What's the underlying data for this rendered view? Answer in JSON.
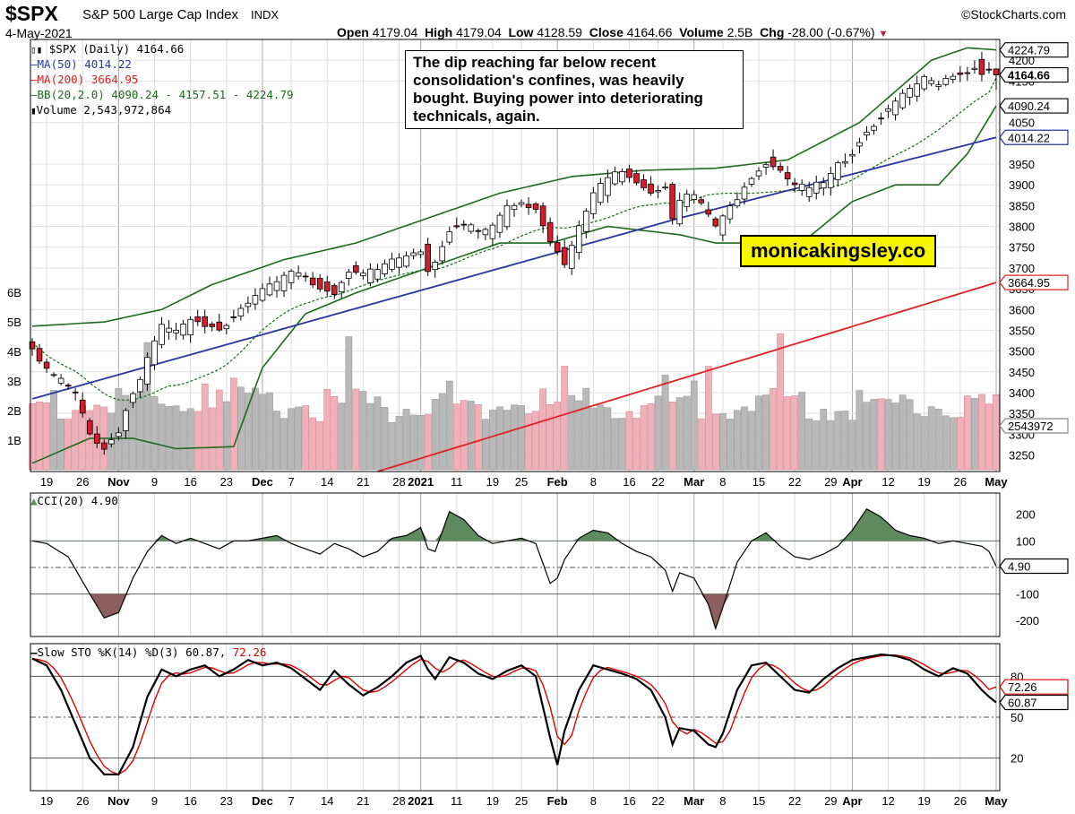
{
  "header": {
    "ticker": "$SPX",
    "index_name": "S&P 500 Large Cap Index",
    "exchange": "INDX",
    "date": "4-May-2021",
    "credit": "©StockCharts.com",
    "open_label": "Open",
    "open": "4179.04",
    "high_label": "High",
    "high": "4179.04",
    "low_label": "Low",
    "low": "4128.59",
    "close_label": "Close",
    "close": "4164.66",
    "volume_label": "Volume",
    "volume": "2.5B",
    "chg_label": "Chg",
    "chg": "-28.00 (-0.67%)"
  },
  "legend": {
    "price": "$SPX (Daily) 4164.66",
    "ma50": "MA(50) 4014.22",
    "ma200": "MA(200) 3664.95",
    "bb": "BB(20,2.0) 4090.24 - 4157.51 - 4224.79",
    "volume": "Volume 2,543,972,864",
    "cci": "CCI(20) 4.90",
    "sto_main": "Slow STO %K(14) %D(3) 60.87,",
    "sto_d": "72.26"
  },
  "annotation": "The dip reaching far below recent consolidation's confines, was heavily bought. Buying power into deteriorating technicals, again.",
  "brand": "monicakingsley.co",
  "colors": {
    "up": "#ffffff",
    "down": "#d0202e",
    "ma50": "#2a35a0",
    "ma200": "#e02020",
    "bb": "#1d6a1d",
    "vol_up": "#b8b8b8",
    "vol_down": "#f0b0b8",
    "cci_pos": "#5e8c5e",
    "cci_neg": "#8c5e5e",
    "k": "#000000",
    "d": "#e00000"
  },
  "chart_data": [
    {
      "type": "candlestick",
      "title": "$SPX (Daily)",
      "ylim": [
        3210,
        4250
      ],
      "y_ticks": [
        3250,
        3300,
        3350,
        3400,
        3450,
        3500,
        3550,
        3600,
        3650,
        3700,
        3750,
        3800,
        3850,
        3900,
        3950,
        4050,
        4150,
        4200
      ],
      "x_ticks": [
        {
          "label": "19",
          "i": 2
        },
        {
          "label": "26",
          "i": 7
        },
        {
          "label": "Nov",
          "i": 12
        },
        {
          "label": "9",
          "i": 17
        },
        {
          "label": "16",
          "i": 22
        },
        {
          "label": "23",
          "i": 27
        },
        {
          "label": "Dec",
          "i": 32
        },
        {
          "label": "7",
          "i": 36
        },
        {
          "label": "14",
          "i": 41
        },
        {
          "label": "21",
          "i": 46
        },
        {
          "label": "28",
          "i": 51
        },
        {
          "label": "2021",
          "i": 54
        },
        {
          "label": "11",
          "i": 59
        },
        {
          "label": "19",
          "i": 64
        },
        {
          "label": "25",
          "i": 68
        },
        {
          "label": "Feb",
          "i": 73
        },
        {
          "label": "8",
          "i": 78
        },
        {
          "label": "16",
          "i": 83
        },
        {
          "label": "22",
          "i": 87
        },
        {
          "label": "Mar",
          "i": 92
        },
        {
          "label": "8",
          "i": 96
        },
        {
          "label": "15",
          "i": 101
        },
        {
          "label": "22",
          "i": 106
        },
        {
          "label": "29",
          "i": 111
        },
        {
          "label": "Apr",
          "i": 114
        },
        {
          "label": "12",
          "i": 119
        },
        {
          "label": "19",
          "i": 124
        },
        {
          "label": "26",
          "i": 129
        },
        {
          "label": "May",
          "i": 134
        }
      ],
      "price_labels": [
        {
          "value": "4224.79",
          "price": 4224.79,
          "style": "bb"
        },
        {
          "value": "4164.66",
          "price": 4164.66,
          "style": "price"
        },
        {
          "value": "4090.24",
          "price": 4090.24,
          "style": "bb"
        },
        {
          "value": "4014.22",
          "price": 4014.22,
          "style": "ma50"
        },
        {
          "value": "3664.95",
          "price": 3664.95,
          "style": "ma200"
        },
        {
          "value": "2543972",
          "price": 3320,
          "style": "vol"
        }
      ],
      "closes_key": [
        [
          0,
          3520
        ],
        [
          2,
          3460
        ],
        [
          4,
          3430
        ],
        [
          6,
          3400
        ],
        [
          8,
          3300
        ],
        [
          10,
          3275
        ],
        [
          12,
          3310
        ],
        [
          13,
          3370
        ],
        [
          15,
          3440
        ],
        [
          16,
          3490
        ],
        [
          18,
          3560
        ],
        [
          20,
          3550
        ],
        [
          22,
          3580
        ],
        [
          24,
          3570
        ],
        [
          26,
          3560
        ],
        [
          28,
          3590
        ],
        [
          30,
          3630
        ],
        [
          32,
          3655
        ],
        [
          34,
          3670
        ],
        [
          36,
          3690
        ],
        [
          38,
          3680
        ],
        [
          40,
          3660
        ],
        [
          42,
          3650
        ],
        [
          44,
          3700
        ],
        [
          46,
          3690
        ],
        [
          48,
          3695
        ],
        [
          50,
          3720
        ],
        [
          52,
          3730
        ],
        [
          54,
          3750
        ],
        [
          55,
          3700
        ],
        [
          56,
          3720
        ],
        [
          58,
          3800
        ],
        [
          60,
          3810
        ],
        [
          62,
          3790
        ],
        [
          64,
          3800
        ],
        [
          66,
          3850
        ],
        [
          68,
          3855
        ],
        [
          70,
          3850
        ],
        [
          72,
          3770
        ],
        [
          74,
          3720
        ],
        [
          76,
          3800
        ],
        [
          78,
          3880
        ],
        [
          80,
          3920
        ],
        [
          82,
          3935
        ],
        [
          84,
          3910
        ],
        [
          86,
          3890
        ],
        [
          88,
          3900
        ],
        [
          89,
          3830
        ],
        [
          90,
          3870
        ],
        [
          92,
          3880
        ],
        [
          94,
          3830
        ],
        [
          95,
          3800
        ],
        [
          96,
          3830
        ],
        [
          98,
          3870
        ],
        [
          100,
          3930
        ],
        [
          102,
          3960
        ],
        [
          104,
          3940
        ],
        [
          106,
          3900
        ],
        [
          108,
          3895
        ],
        [
          110,
          3910
        ],
        [
          112,
          3950
        ],
        [
          114,
          3985
        ],
        [
          116,
          4040
        ],
        [
          118,
          4070
        ],
        [
          120,
          4110
        ],
        [
          122,
          4130
        ],
        [
          124,
          4160
        ],
        [
          126,
          4140
        ],
        [
          128,
          4175
        ],
        [
          130,
          4180
        ],
        [
          131,
          4195
        ],
        [
          132,
          4180
        ],
        [
          133,
          4190
        ],
        [
          134,
          4164.66
        ]
      ],
      "ma50": {
        "start": [
          0,
          3385
        ],
        "mid": [
          90,
          3820
        ],
        "end": [
          134,
          4014.22
        ]
      },
      "ma200": {
        "start": [
          48,
          3210
        ],
        "end": [
          134,
          3664.95
        ]
      },
      "bollinger": {
        "upper_key": [
          [
            0,
            3560
          ],
          [
            10,
            3570
          ],
          [
            18,
            3600
          ],
          [
            25,
            3660
          ],
          [
            35,
            3720
          ],
          [
            45,
            3760
          ],
          [
            55,
            3820
          ],
          [
            65,
            3880
          ],
          [
            75,
            3920
          ],
          [
            85,
            3935
          ],
          [
            95,
            3940
          ],
          [
            105,
            3960
          ],
          [
            115,
            4050
          ],
          [
            125,
            4200
          ],
          [
            130,
            4230
          ],
          [
            134,
            4224.79
          ]
        ],
        "middle": "20-period SMA of closes; last 4157.51",
        "lower_key": [
          [
            0,
            3230
          ],
          [
            8,
            3290
          ],
          [
            14,
            3290
          ],
          [
            20,
            3265
          ],
          [
            28,
            3270
          ],
          [
            32,
            3460
          ],
          [
            38,
            3590
          ],
          [
            45,
            3640
          ],
          [
            55,
            3700
          ],
          [
            65,
            3760
          ],
          [
            72,
            3760
          ],
          [
            80,
            3800
          ],
          [
            90,
            3780
          ],
          [
            95,
            3760
          ],
          [
            100,
            3760
          ],
          [
            108,
            3775
          ],
          [
            114,
            3860
          ],
          [
            120,
            3900
          ],
          [
            126,
            3900
          ],
          [
            130,
            3975
          ],
          [
            134,
            4090.24
          ]
        ]
      }
    },
    {
      "type": "bar",
      "title": "Volume",
      "last_value": 2543972864,
      "y_ticks": [
        {
          "label": "1B",
          "v": 1
        },
        {
          "label": "2B",
          "v": 2
        },
        {
          "label": "3B",
          "v": 3
        },
        {
          "label": "4B",
          "v": 4
        },
        {
          "label": "5B",
          "v": 5
        },
        {
          "label": "6B",
          "v": 6
        }
      ],
      "peaks": [
        [
          16,
          4.3
        ],
        [
          24,
          2.9
        ],
        [
          26,
          2.7
        ],
        [
          28,
          3.1
        ],
        [
          44,
          4.5
        ],
        [
          50,
          1.6
        ],
        [
          58,
          3.0
        ],
        [
          74,
          3.5
        ],
        [
          88,
          3.2
        ],
        [
          92,
          3.0
        ],
        [
          94,
          3.5
        ],
        [
          104,
          4.6
        ],
        [
          106,
          2.5
        ],
        [
          130,
          2.5
        ],
        [
          134,
          2.54
        ]
      ],
      "typical_range": [
        2.2,
        2.8
      ]
    },
    {
      "type": "area",
      "title": "CCI(20)",
      "ylim": [
        -260,
        280
      ],
      "y_ticks": [
        200,
        100,
        -100,
        -200
      ],
      "ref_lines": [
        100,
        0,
        -100
      ],
      "key_points": [
        [
          0,
          100
        ],
        [
          2,
          90
        ],
        [
          5,
          40
        ],
        [
          8,
          -100
        ],
        [
          10,
          -190
        ],
        [
          12,
          -170
        ],
        [
          14,
          -40
        ],
        [
          16,
          60
        ],
        [
          18,
          120
        ],
        [
          20,
          90
        ],
        [
          22,
          110
        ],
        [
          24,
          90
        ],
        [
          26,
          70
        ],
        [
          28,
          100
        ],
        [
          30,
          100
        ],
        [
          32,
          110
        ],
        [
          34,
          120
        ],
        [
          36,
          90
        ],
        [
          38,
          70
        ],
        [
          40,
          50
        ],
        [
          42,
          90
        ],
        [
          44,
          70
        ],
        [
          46,
          40
        ],
        [
          48,
          60
        ],
        [
          50,
          110
        ],
        [
          52,
          120
        ],
        [
          54,
          150
        ],
        [
          55,
          70
        ],
        [
          56,
          60
        ],
        [
          58,
          210
        ],
        [
          60,
          180
        ],
        [
          62,
          120
        ],
        [
          64,
          90
        ],
        [
          66,
          100
        ],
        [
          68,
          110
        ],
        [
          70,
          90
        ],
        [
          72,
          -60
        ],
        [
          73,
          -40
        ],
        [
          74,
          30
        ],
        [
          76,
          110
        ],
        [
          78,
          140
        ],
        [
          80,
          130
        ],
        [
          82,
          90
        ],
        [
          84,
          60
        ],
        [
          86,
          40
        ],
        [
          88,
          -10
        ],
        [
          89,
          -90
        ],
        [
          90,
          -20
        ],
        [
          92,
          -40
        ],
        [
          94,
          -140
        ],
        [
          95,
          -230
        ],
        [
          96,
          -150
        ],
        [
          98,
          20
        ],
        [
          100,
          100
        ],
        [
          102,
          130
        ],
        [
          104,
          80
        ],
        [
          106,
          40
        ],
        [
          108,
          30
        ],
        [
          110,
          50
        ],
        [
          112,
          80
        ],
        [
          114,
          140
        ],
        [
          116,
          220
        ],
        [
          118,
          190
        ],
        [
          120,
          140
        ],
        [
          122,
          120
        ],
        [
          124,
          110
        ],
        [
          126,
          90
        ],
        [
          128,
          100
        ],
        [
          130,
          90
        ],
        [
          132,
          80
        ],
        [
          133,
          60
        ],
        [
          134,
          4.9
        ]
      ],
      "last_value": "4.90"
    },
    {
      "type": "line",
      "title": "Slow STO %K(14) %D(3)",
      "ylim": [
        0,
        100
      ],
      "y_ticks": [
        80,
        50,
        20
      ],
      "ref_lines": [
        80,
        50,
        20
      ],
      "k_key": [
        [
          0,
          93
        ],
        [
          2,
          88
        ],
        [
          4,
          70
        ],
        [
          6,
          45
        ],
        [
          8,
          20
        ],
        [
          10,
          8
        ],
        [
          12,
          8
        ],
        [
          14,
          28
        ],
        [
          16,
          65
        ],
        [
          18,
          85
        ],
        [
          20,
          80
        ],
        [
          22,
          85
        ],
        [
          24,
          88
        ],
        [
          26,
          80
        ],
        [
          28,
          85
        ],
        [
          30,
          92
        ],
        [
          32,
          88
        ],
        [
          34,
          90
        ],
        [
          36,
          86
        ],
        [
          38,
          78
        ],
        [
          40,
          70
        ],
        [
          42,
          84
        ],
        [
          44,
          74
        ],
        [
          46,
          66
        ],
        [
          48,
          72
        ],
        [
          50,
          80
        ],
        [
          52,
          90
        ],
        [
          54,
          95
        ],
        [
          55,
          85
        ],
        [
          56,
          78
        ],
        [
          58,
          94
        ],
        [
          60,
          90
        ],
        [
          62,
          82
        ],
        [
          64,
          78
        ],
        [
          66,
          84
        ],
        [
          68,
          88
        ],
        [
          70,
          80
        ],
        [
          72,
          35
        ],
        [
          73,
          15
        ],
        [
          74,
          40
        ],
        [
          76,
          70
        ],
        [
          78,
          88
        ],
        [
          80,
          85
        ],
        [
          82,
          82
        ],
        [
          84,
          78
        ],
        [
          86,
          70
        ],
        [
          88,
          50
        ],
        [
          89,
          30
        ],
        [
          90,
          42
        ],
        [
          92,
          40
        ],
        [
          94,
          30
        ],
        [
          95,
          28
        ],
        [
          96,
          38
        ],
        [
          98,
          70
        ],
        [
          100,
          88
        ],
        [
          102,
          90
        ],
        [
          104,
          80
        ],
        [
          106,
          70
        ],
        [
          108,
          68
        ],
        [
          110,
          78
        ],
        [
          112,
          86
        ],
        [
          114,
          92
        ],
        [
          116,
          94
        ],
        [
          118,
          96
        ],
        [
          120,
          95
        ],
        [
          122,
          92
        ],
        [
          124,
          85
        ],
        [
          126,
          80
        ],
        [
          128,
          86
        ],
        [
          130,
          82
        ],
        [
          132,
          70
        ],
        [
          133,
          65
        ],
        [
          134,
          60.87
        ]
      ],
      "d_last": 72.26,
      "k_last": 60.87,
      "right_labels": [
        {
          "value": "72.26",
          "v": 72.26,
          "style": "d"
        },
        {
          "value": "60.87",
          "v": 60.87,
          "style": "k"
        }
      ]
    }
  ]
}
